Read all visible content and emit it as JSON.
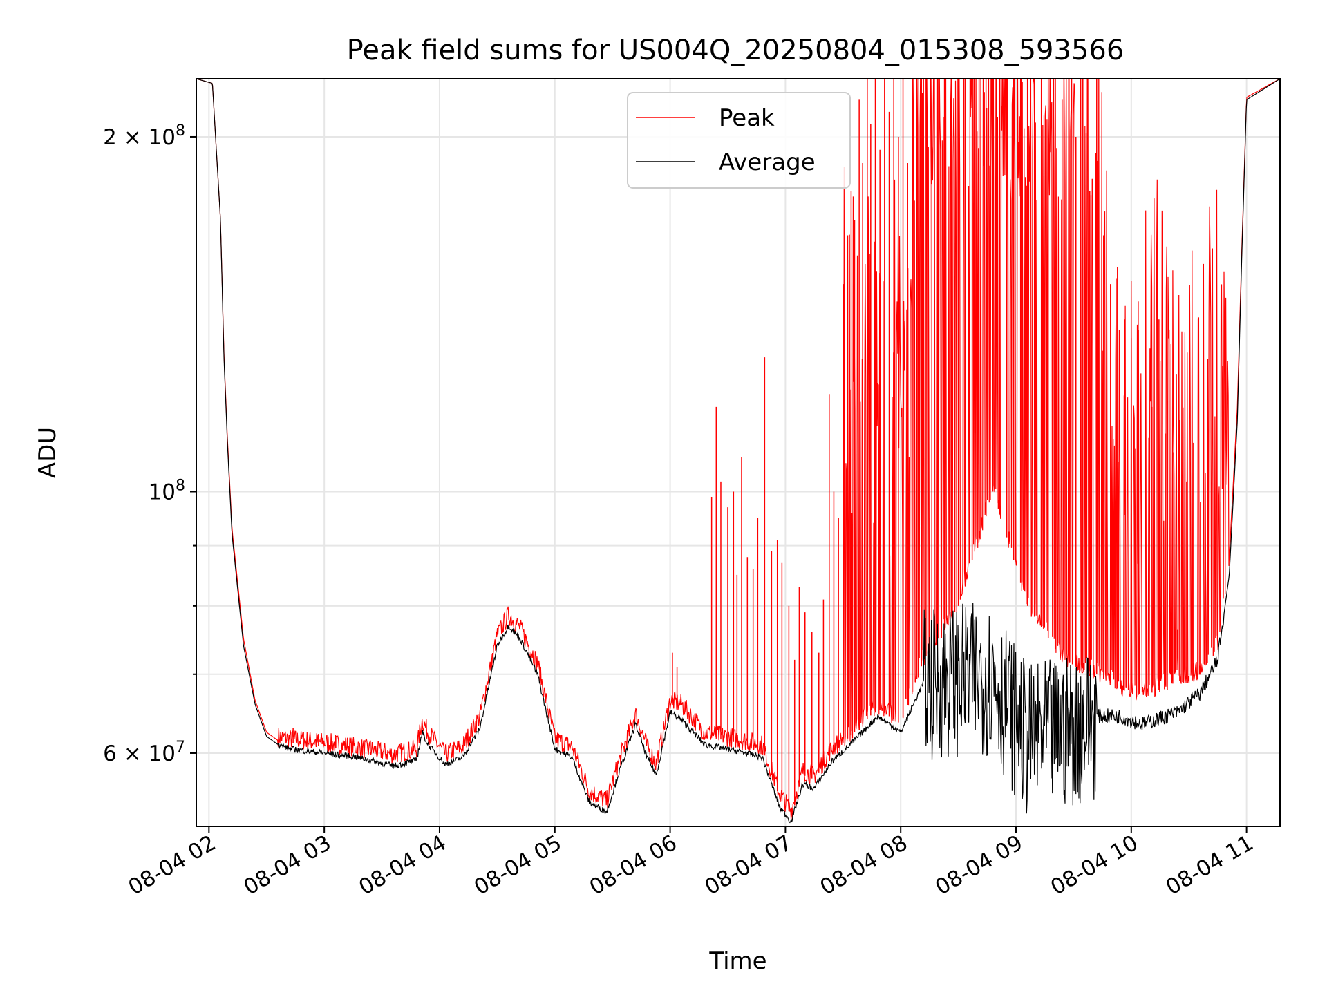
{
  "chart_data": {
    "type": "line",
    "title": "Peak field sums for US004Q_20250804_015308_593566",
    "xlabel": "Time",
    "ylabel": "ADU",
    "x_unit": "hours (2025-08-04)",
    "xlim": [
      1.89,
      11.29
    ],
    "ylim": [
      52000000,
      224000000
    ],
    "y_scale": "log",
    "grid": true,
    "legend_position": "upper center",
    "x_ticks": [
      2,
      3,
      4,
      5,
      6,
      7,
      8,
      9,
      10,
      11
    ],
    "x_tick_labels": [
      "08-04 02",
      "08-04 03",
      "08-04 04",
      "08-04 05",
      "08-04 06",
      "08-04 07",
      "08-04 08",
      "08-04 09",
      "08-04 10",
      "08-04 11"
    ],
    "y_major_ticks": [
      {
        "value": 60000000,
        "base": "6 × 10",
        "exp": "7"
      },
      {
        "value": 100000000,
        "base": "10",
        "exp": "8"
      },
      {
        "value": 200000000,
        "base": "2 × 10",
        "exp": "8"
      }
    ],
    "y_minor_gridlines": [
      70000000,
      80000000,
      90000000
    ],
    "series": [
      {
        "name": "Average",
        "color": "#000000",
        "x": [
          1.89,
          2.03,
          2.1,
          2.13,
          2.16,
          2.2,
          2.3,
          2.4,
          2.5,
          2.6,
          2.7,
          3.0,
          3.3,
          3.6,
          3.8,
          3.85,
          3.9,
          4.05,
          4.2,
          4.35,
          4.5,
          4.6,
          4.7,
          4.85,
          5.0,
          5.15,
          5.3,
          5.45,
          5.55,
          5.7,
          5.8,
          5.88,
          6.0,
          6.1,
          6.3,
          6.6,
          6.8,
          6.95,
          7.05,
          7.15,
          7.25,
          7.4,
          7.6,
          7.8,
          8.0,
          8.2,
          8.5,
          8.8,
          9.1,
          9.4,
          9.7,
          9.9,
          10.1,
          10.4,
          10.6,
          10.75,
          10.85,
          10.92,
          10.96,
          11.0,
          11.29
        ],
        "y": [
          224000000,
          222000000,
          170000000,
          130000000,
          110000000,
          92000000,
          74000000,
          66000000,
          62000000,
          61000000,
          60500000,
          60000000,
          59500000,
          58500000,
          59200000,
          62500000,
          61000000,
          58700000,
          59500000,
          63000000,
          74000000,
          77000000,
          75000000,
          70000000,
          60500000,
          59500000,
          54500000,
          53500000,
          57500000,
          63500000,
          59500000,
          57500000,
          65000000,
          64000000,
          61000000,
          60200000,
          59500000,
          54000000,
          52500000,
          56500000,
          56000000,
          59000000,
          61500000,
          64500000,
          62500000,
          69000000,
          70000000,
          70000000,
          62000000,
          63000000,
          64500000,
          64500000,
          63500000,
          65000000,
          67500000,
          72000000,
          85000000,
          115000000,
          160000000,
          215000000,
          224000000
        ]
      },
      {
        "name": "Peak",
        "color": "#ff0000",
        "x": [
          1.89,
          2.03,
          2.1,
          2.13,
          2.16,
          2.2,
          2.3,
          2.4,
          2.5,
          2.6,
          2.7,
          3.0,
          3.3,
          3.6,
          3.8,
          3.85,
          3.9,
          4.05,
          4.2,
          4.35,
          4.5,
          4.6,
          4.7,
          4.85,
          5.0,
          5.15,
          5.3,
          5.45,
          5.55,
          5.7,
          5.8,
          5.88,
          6.0,
          6.1,
          6.3,
          6.6,
          6.8,
          6.95,
          7.05,
          7.15,
          7.25,
          7.4,
          7.6,
          7.8,
          8.0,
          8.2,
          8.5,
          8.8,
          9.1,
          9.4,
          9.7,
          9.9,
          10.1,
          10.4,
          10.6,
          10.75,
          10.85,
          10.92,
          10.96,
          11.0,
          11.29
        ],
        "y": [
          224000000,
          222000000,
          170000000,
          131000000,
          111000000,
          93000000,
          75000000,
          66500000,
          62500000,
          61500000,
          61200000,
          60800000,
          60200000,
          59400000,
          60000000,
          63500000,
          62000000,
          59400000,
          60300000,
          64000000,
          75000000,
          78000000,
          76000000,
          71000000,
          61200000,
          60300000,
          55300000,
          54200000,
          58300000,
          64300000,
          60300000,
          58300000,
          66000000,
          65500000,
          62000000,
          61200000,
          60500000,
          55000000,
          53200000,
          57500000,
          57000000,
          60000000,
          62500000,
          65500000,
          63500000,
          72000000,
          80000000,
          100000000,
          80000000,
          72000000,
          70000000,
          68000000,
          67000000,
          69000000,
          70000000,
          74000000,
          88000000,
          118000000,
          162000000,
          216000000,
          224000000
        ],
        "spikes": [
          {
            "x": 2.73,
            "y": 63000000
          },
          {
            "x": 2.82,
            "y": 62500000
          },
          {
            "x": 2.95,
            "y": 62300000
          },
          {
            "x": 3.1,
            "y": 62000000
          },
          {
            "x": 3.4,
            "y": 61500000
          },
          {
            "x": 6.02,
            "y": 73000000
          },
          {
            "x": 6.06,
            "y": 71000000
          },
          {
            "x": 6.36,
            "y": 99000000
          },
          {
            "x": 6.4,
            "y": 118000000
          },
          {
            "x": 6.44,
            "y": 102000000
          },
          {
            "x": 6.5,
            "y": 97000000
          },
          {
            "x": 6.55,
            "y": 100000000
          },
          {
            "x": 6.58,
            "y": 85000000
          },
          {
            "x": 6.62,
            "y": 107000000
          },
          {
            "x": 6.67,
            "y": 88000000
          },
          {
            "x": 6.72,
            "y": 86000000
          },
          {
            "x": 6.76,
            "y": 95000000
          },
          {
            "x": 6.82,
            "y": 130000000
          },
          {
            "x": 6.88,
            "y": 89000000
          },
          {
            "x": 6.93,
            "y": 91000000
          },
          {
            "x": 6.97,
            "y": 87000000
          },
          {
            "x": 7.03,
            "y": 80000000
          },
          {
            "x": 7.08,
            "y": 72000000
          },
          {
            "x": 7.12,
            "y": 83000000
          },
          {
            "x": 7.17,
            "y": 79000000
          },
          {
            "x": 7.23,
            "y": 76000000
          },
          {
            "x": 7.29,
            "y": 73000000
          },
          {
            "x": 7.33,
            "y": 81000000
          },
          {
            "x": 7.38,
            "y": 121000000
          },
          {
            "x": 7.42,
            "y": 100000000
          },
          {
            "x": 7.46,
            "y": 95000000
          },
          {
            "x": 7.5,
            "y": 150000000
          },
          {
            "x": 7.54,
            "y": 165000000
          },
          {
            "x": 7.57,
            "y": 180000000
          },
          {
            "x": 7.6,
            "y": 170000000
          },
          {
            "x": 7.64,
            "y": 215000000
          },
          {
            "x": 7.67,
            "y": 190000000
          },
          {
            "x": 7.71,
            "y": 224000000
          },
          {
            "x": 7.74,
            "y": 205000000
          },
          {
            "x": 7.78,
            "y": 224000000
          },
          {
            "x": 7.82,
            "y": 195000000
          },
          {
            "x": 7.86,
            "y": 224000000
          },
          {
            "x": 7.9,
            "y": 210000000
          },
          {
            "x": 7.94,
            "y": 224000000
          },
          {
            "x": 7.98,
            "y": 200000000
          },
          {
            "x": 8.02,
            "y": 224000000
          },
          {
            "x": 8.06,
            "y": 190000000
          },
          {
            "x": 8.1,
            "y": 185000000
          },
          {
            "x": 8.14,
            "y": 224000000
          },
          {
            "x": 8.18,
            "y": 224000000
          },
          {
            "x": 8.22,
            "y": 224000000
          },
          {
            "x": 8.27,
            "y": 224000000
          },
          {
            "x": 8.32,
            "y": 224000000
          },
          {
            "x": 8.38,
            "y": 224000000
          },
          {
            "x": 8.44,
            "y": 224000000
          },
          {
            "x": 8.5,
            "y": 224000000
          },
          {
            "x": 8.56,
            "y": 224000000
          },
          {
            "x": 8.62,
            "y": 224000000
          },
          {
            "x": 8.68,
            "y": 224000000
          },
          {
            "x": 8.74,
            "y": 224000000
          },
          {
            "x": 8.8,
            "y": 224000000
          },
          {
            "x": 8.86,
            "y": 224000000
          },
          {
            "x": 8.92,
            "y": 224000000
          },
          {
            "x": 8.98,
            "y": 224000000
          },
          {
            "x": 9.04,
            "y": 224000000
          },
          {
            "x": 9.1,
            "y": 224000000
          },
          {
            "x": 9.16,
            "y": 224000000
          },
          {
            "x": 9.22,
            "y": 224000000
          },
          {
            "x": 9.28,
            "y": 224000000
          },
          {
            "x": 9.34,
            "y": 224000000
          },
          {
            "x": 9.4,
            "y": 215000000
          },
          {
            "x": 9.46,
            "y": 224000000
          },
          {
            "x": 9.52,
            "y": 200000000
          },
          {
            "x": 9.58,
            "y": 224000000
          },
          {
            "x": 9.64,
            "y": 180000000
          },
          {
            "x": 9.7,
            "y": 224000000
          },
          {
            "x": 9.76,
            "y": 165000000
          },
          {
            "x": 9.82,
            "y": 150000000
          },
          {
            "x": 9.88,
            "y": 155000000
          },
          {
            "x": 9.94,
            "y": 140000000
          },
          {
            "x": 10.0,
            "y": 135000000
          },
          {
            "x": 10.06,
            "y": 145000000
          },
          {
            "x": 10.12,
            "y": 125000000
          },
          {
            "x": 10.18,
            "y": 118000000
          },
          {
            "x": 10.24,
            "y": 140000000
          },
          {
            "x": 10.3,
            "y": 112000000
          },
          {
            "x": 10.36,
            "y": 108000000
          },
          {
            "x": 10.42,
            "y": 115000000
          },
          {
            "x": 10.48,
            "y": 102000000
          },
          {
            "x": 10.54,
            "y": 110000000
          },
          {
            "x": 10.6,
            "y": 98000000
          },
          {
            "x": 10.66,
            "y": 120000000
          },
          {
            "x": 10.72,
            "y": 95000000
          }
        ],
        "dense_band": {
          "x_start": 7.5,
          "x_end": 10.85
        }
      }
    ]
  }
}
